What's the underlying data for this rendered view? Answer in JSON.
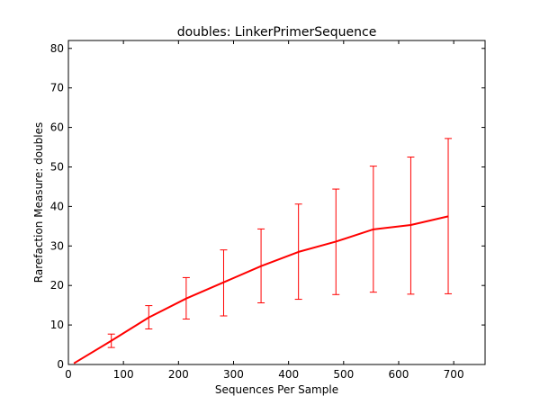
{
  "chart_data": {
    "type": "line",
    "title": "doubles: LinkerPrimerSequence",
    "xlabel": "Sequences Per Sample",
    "ylabel": "Rarefaction Measure: doubles",
    "xlim": [
      0,
      757
    ],
    "ylim": [
      0,
      82
    ],
    "xticks": [
      0,
      100,
      200,
      300,
      400,
      500,
      600,
      700
    ],
    "yticks": [
      0,
      10,
      20,
      30,
      40,
      50,
      60,
      70,
      80
    ],
    "grid": false,
    "color": "#ff0000",
    "series": [
      {
        "x": [
          10,
          78,
          146,
          214,
          282,
          350,
          418,
          486,
          554,
          622,
          690
        ],
        "y": [
          0.3,
          6.0,
          11.9,
          16.7,
          20.8,
          24.9,
          28.5,
          31.1,
          34.2,
          35.3,
          37.5
        ],
        "err_low": [
          0,
          4.3,
          9.0,
          11.5,
          12.3,
          15.6,
          16.5,
          17.7,
          18.3,
          17.8,
          17.9
        ],
        "err_high": [
          0,
          7.7,
          14.9,
          22.0,
          29.0,
          34.3,
          40.6,
          44.4,
          50.2,
          52.5,
          57.2
        ]
      }
    ]
  }
}
